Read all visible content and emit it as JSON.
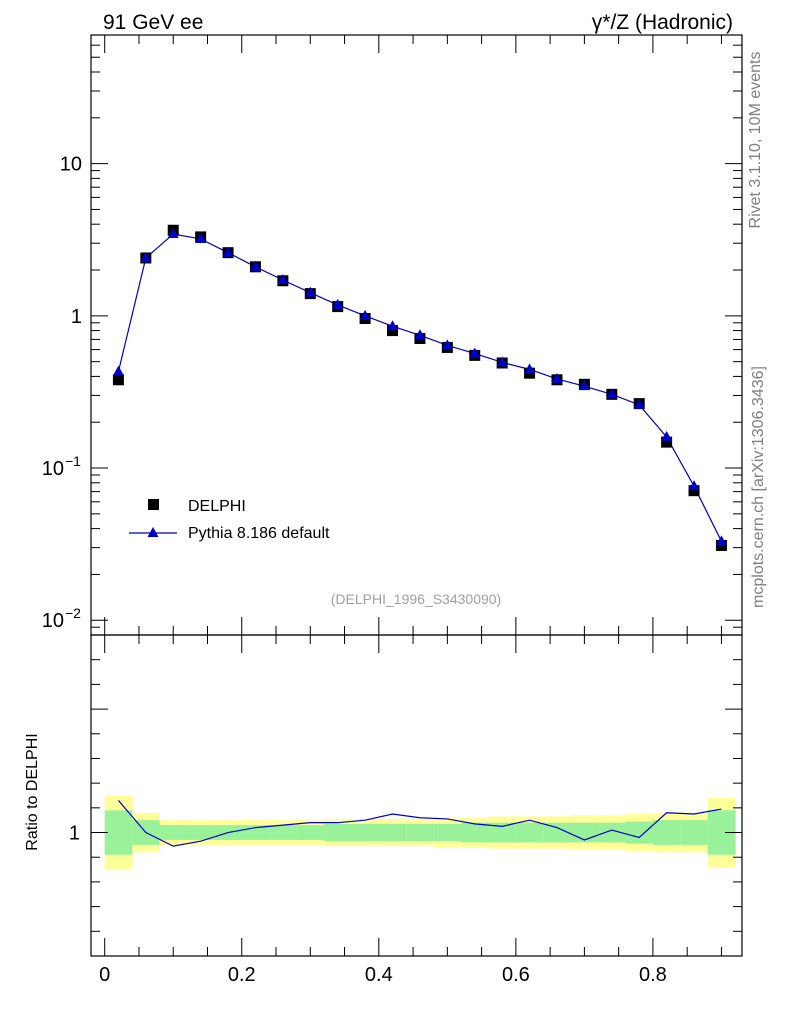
{
  "header": {
    "left": "91 GeV ee",
    "right": "γ*/Z (Hadronic)"
  },
  "side_labels": {
    "rivet": "Rivet 3.1.10,  10M events",
    "mcplots": "mcplots.cern.ch [arXiv:1306.3436]"
  },
  "analysis_label": "(DELPHI_1996_S3430090)",
  "legend": {
    "data_label": "DELPHI",
    "mc_label": "Pythia 8.186 default"
  },
  "colors": {
    "data": "#000000",
    "mc": "#0000cc",
    "band_inner": "#99f299",
    "band_outer": "#ffff99"
  },
  "chart_data": [
    {
      "type": "scatter",
      "scale": "log",
      "xlim": [
        -0.02,
        0.93
      ],
      "ylim": [
        0.008,
        70
      ],
      "y_ticks": [
        {
          "value": 0.01,
          "label": "10",
          "exp": "−2"
        },
        {
          "value": 0.1,
          "label": "10",
          "exp": "−1"
        },
        {
          "value": 1,
          "label": "1",
          "exp": ""
        },
        {
          "value": 10,
          "label": "10",
          "exp": ""
        }
      ],
      "x": [
        0.02,
        0.06,
        0.1,
        0.14,
        0.18,
        0.22,
        0.26,
        0.3,
        0.34,
        0.38,
        0.42,
        0.46,
        0.5,
        0.54,
        0.58,
        0.62,
        0.66,
        0.7,
        0.74,
        0.78,
        0.82,
        0.86,
        0.9
      ],
      "series": [
        {
          "name": "DELPHI",
          "values": [
            0.38,
            2.4,
            3.65,
            3.3,
            2.6,
            2.1,
            1.7,
            1.4,
            1.15,
            0.96,
            0.8,
            0.71,
            0.62,
            0.55,
            0.49,
            0.42,
            0.38,
            0.355,
            0.305,
            0.265,
            0.148,
            0.071,
            0.031
          ]
        },
        {
          "name": "Pythia 8.186 default",
          "values": [
            0.43,
            2.4,
            3.45,
            3.2,
            2.6,
            2.1,
            1.72,
            1.42,
            1.18,
            1.0,
            0.855,
            0.745,
            0.64,
            0.565,
            0.495,
            0.445,
            0.385,
            0.345,
            0.305,
            0.26,
            0.16,
            0.076,
            0.033
          ]
        }
      ]
    },
    {
      "type": "line",
      "ylabel": "Ratio to DELPHI",
      "xlim": [
        -0.02,
        0.93
      ],
      "ylim": [
        0.5,
        1.8
      ],
      "x_ticks": [
        0,
        0.2,
        0.4,
        0.6,
        0.8
      ],
      "x_tick_labels": [
        "0",
        "0.2",
        "0.4",
        "0.6",
        "0.8"
      ],
      "y_ticks": [
        {
          "value": 1,
          "label": "1"
        }
      ],
      "x": [
        0.02,
        0.06,
        0.1,
        0.14,
        0.18,
        0.22,
        0.26,
        0.3,
        0.34,
        0.38,
        0.42,
        0.46,
        0.5,
        0.54,
        0.58,
        0.62,
        0.66,
        0.7,
        0.74,
        0.78,
        0.82,
        0.86,
        0.9
      ],
      "series": [
        {
          "name": "Pythia 8.186 default",
          "values": [
            1.13,
            1.0,
            0.945,
            0.965,
            1.0,
            1.02,
            1.03,
            1.04,
            1.04,
            1.05,
            1.075,
            1.06,
            1.055,
            1.035,
            1.025,
            1.05,
            1.02,
            0.97,
            1.01,
            0.98,
            1.08,
            1.075,
            1.095
          ]
        }
      ],
      "band_inner": [
        0.09,
        0.05,
        0.03,
        0.03,
        0.03,
        0.03,
        0.03,
        0.03,
        0.035,
        0.035,
        0.035,
        0.035,
        0.035,
        0.04,
        0.04,
        0.04,
        0.04,
        0.04,
        0.04,
        0.045,
        0.05,
        0.05,
        0.09
      ],
      "band_outer": [
        0.15,
        0.08,
        0.05,
        0.05,
        0.05,
        0.05,
        0.05,
        0.05,
        0.055,
        0.055,
        0.055,
        0.055,
        0.06,
        0.06,
        0.065,
        0.065,
        0.065,
        0.07,
        0.07,
        0.075,
        0.08,
        0.08,
        0.14
      ]
    }
  ]
}
